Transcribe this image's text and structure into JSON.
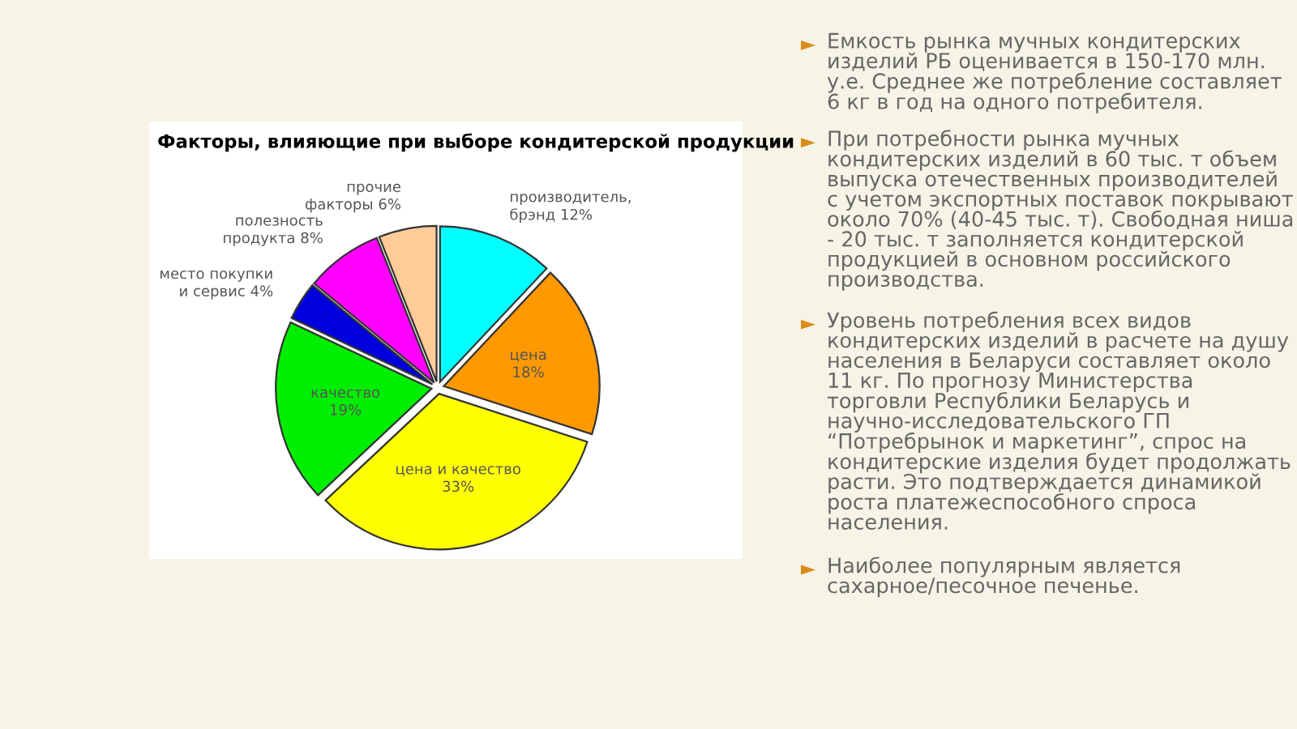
{
  "chart_data": {
    "type": "pie",
    "title": "Факторы, влияющие при выборе кондитерской продукции",
    "categories": [
      "производитель, брэнд",
      "цена",
      "цена и качество",
      "качество",
      "место покупки и сервис",
      "полезность продукта",
      "прочие факторы"
    ],
    "values": [
      12,
      18,
      33,
      19,
      4,
      8,
      6
    ],
    "value_labels": [
      "12%",
      "18%",
      "33%",
      "19%",
      "4%",
      "8%",
      "6%"
    ],
    "colors": [
      "#00ffff",
      "#ff9900",
      "#ffff00",
      "#00ee00",
      "#0000dd",
      "#ff00ff",
      "#ffcc99"
    ],
    "annotations": [
      "Емкость рынка мучных кондитерских изделий РБ оценивается в 150-170 млн. у.е. Среднее же потребление составляет 6 кг в год на одного потребителя.",
      "При потребности рынка мучных кондитерских изделий в 60 тыс. т объем выпуска отечественных производителей с учетом экспортных поставок покрывают около 70% (40-45 тыс. т). Свободная ниша - 20 тыс. т заполняется кондитерской продукцией в основном российского производства.",
      "Уровень потребления всех видов кондитерских изделий в расчете на душу населения в Беларуси составляет около 11 кг. По прогнозу Министерства торговли Республики Беларусь и научно-исследовательского ГП “Потребрынок и маркетинг”, спрос на кондитерские изделия будет продолжать расти. Это подтверждается динамикой роста платежеспособного спроса населения.",
      "Наиболее популярным является сахарное/песочное печенье."
    ],
    "legend": false
  }
}
